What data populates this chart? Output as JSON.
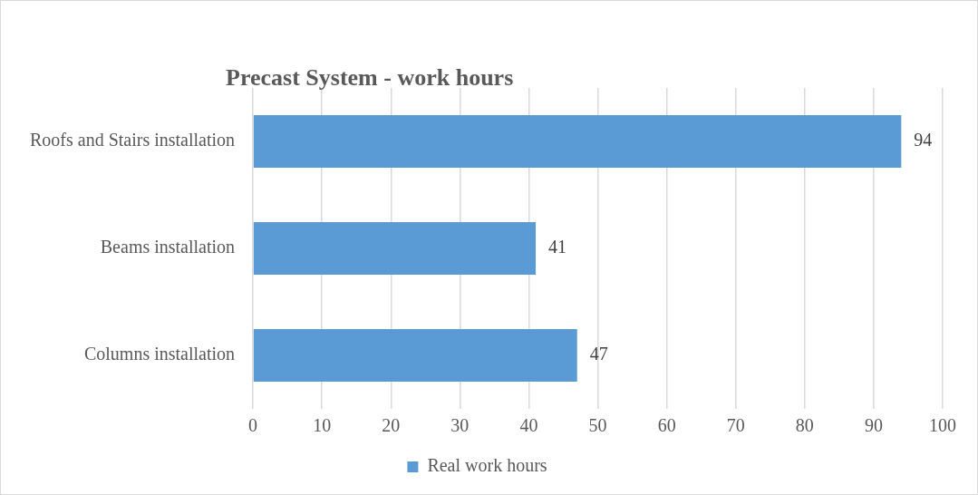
{
  "chart_data": {
    "type": "bar",
    "orientation": "horizontal",
    "title": "Precast System - work hours",
    "categories": [
      "Roofs and Stairs installation",
      "Beams installation",
      "Columns installation"
    ],
    "series": [
      {
        "name": "Real work hours",
        "color": "#5b9bd5",
        "values": [
          94,
          41,
          47
        ]
      }
    ],
    "xlim": [
      0,
      100
    ],
    "xticks": [
      0,
      10,
      20,
      30,
      40,
      50,
      60,
      70,
      80,
      90,
      100
    ],
    "grid": "x",
    "legend": "bottom",
    "data_labels": true
  }
}
